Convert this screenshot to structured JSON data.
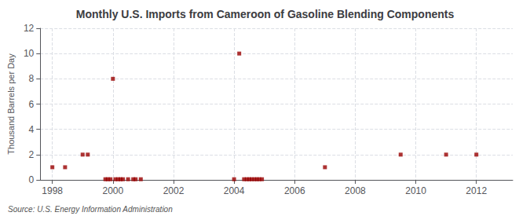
{
  "chart_data": {
    "type": "scatter",
    "title": "Monthly U.S. Imports from Cameroon of Gasoline Blending Components",
    "ylabel": "Thousand Barrels per Day",
    "annotations": [
      "Source: U.S. Energy Information Administration"
    ],
    "color": "#990000",
    "marker": "square",
    "grid": true,
    "xlim": [
      1997.6,
      2013.2
    ],
    "ylim": [
      0,
      12
    ],
    "xticks": [
      1998,
      2000,
      2002,
      2004,
      2006,
      2008,
      2010,
      2012
    ],
    "yticks": [
      0,
      2,
      4,
      6,
      8,
      10,
      12
    ],
    "x": [
      1998.0,
      1998.42,
      1999.0,
      1999.17,
      1999.75,
      1999.83,
      1999.92,
      2000.0,
      2000.08,
      2000.17,
      2000.25,
      2000.33,
      2000.5,
      2000.67,
      2000.75,
      2000.92,
      2004.0,
      2004.17,
      2004.33,
      2004.42,
      2004.5,
      2004.58,
      2004.67,
      2004.75,
      2004.83,
      2004.92,
      2007.0,
      2009.5,
      2011.0,
      2012.0
    ],
    "values": [
      1.0,
      1.0,
      2.0,
      2.0,
      0.05,
      0.05,
      0.05,
      8.0,
      0.05,
      0.05,
      0.05,
      0.05,
      0.05,
      0.05,
      0.05,
      0.05,
      0.05,
      10.0,
      0.05,
      0.05,
      0.05,
      0.05,
      0.05,
      0.05,
      0.05,
      0.05,
      1.0,
      2.0,
      2.0,
      2.0
    ]
  }
}
